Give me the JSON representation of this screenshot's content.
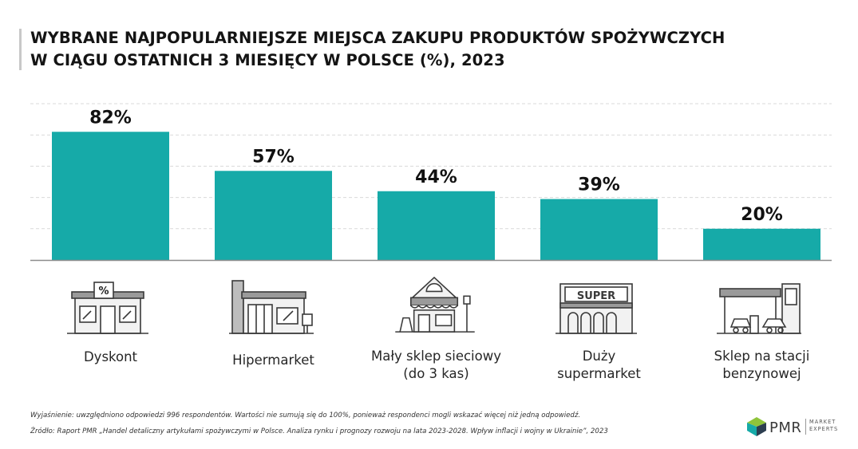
{
  "title_lines": [
    "WYBRANE NAJPOPULARNIEJSZE MIEJSCA ZAKUPU PRODUKTÓW SPOŻYWCZYCH",
    "W CIĄGU OSTATNICH 3 MIESIĘCY W POLSCE (%), 2023"
  ],
  "chart_data": {
    "type": "bar",
    "title": "WYBRANE NAJPOPULARNIEJSZE MIEJSCA ZAKUPU PRODUKTÓW SPOŻYWCZYCH W CIĄGU OSTATNICH 3 MIESIĘCY W POLSCE (%), 2023",
    "categories": [
      "Dyskont",
      "Hipermarket",
      "Mały sklep sieciowy\n(do 3 kas)",
      "Duży\nsupermarket",
      "Sklep na stacji\nbenzynowej"
    ],
    "values": [
      82,
      57,
      44,
      39,
      20
    ],
    "value_labels": [
      "82%",
      "57%",
      "44%",
      "39%",
      "20%"
    ],
    "icons": [
      "discount-store-icon",
      "hypermarket-icon",
      "small-shop-icon",
      "supermarket-icon",
      "gas-station-shop-icon"
    ],
    "ylim": [
      0,
      100
    ],
    "grid": true,
    "bar_color": "#16aaa8"
  },
  "icon_texts": {
    "discount_sign": "%",
    "supermarket_sign": "SUPER"
  },
  "footnote": "Wyjaśnienie: uwzględniono odpowiedzi 996 respondentów. Wartości nie sumują się do 100%, ponieważ respondenci mogli wskazać więcej niż jedną odpowiedź.",
  "source": "Źródło: Raport PMR „Handel detaliczny artykułami spożywczymi w Polsce. Analiza rynku i prognozy rozwoju na lata 2023-2028. Wpływ inflacji i wojny w Ukrainie”, 2023",
  "logo": {
    "name": "PMR",
    "sub_line1": "MARKET",
    "sub_line2": "EXPERTS",
    "colors": [
      "#16aaa8",
      "#2c3e50",
      "#8fc43a"
    ]
  }
}
